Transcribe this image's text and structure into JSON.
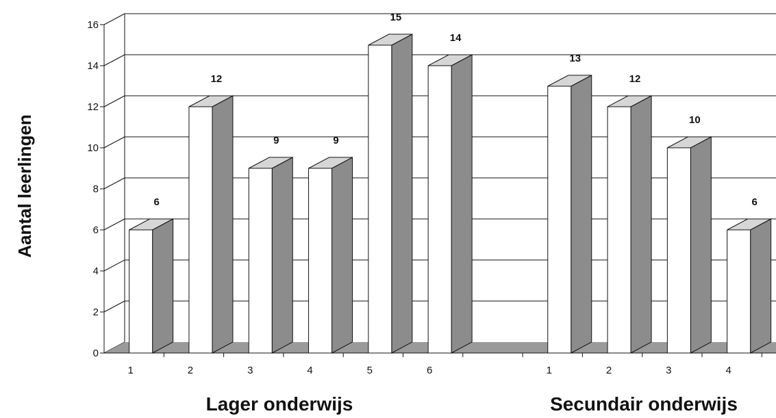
{
  "chart_data": {
    "type": "bar",
    "ylabel": "Aantal leerlingen",
    "ylim": [
      0,
      16
    ],
    "yticks": [
      "0",
      "2",
      "4",
      "6",
      "8",
      "10",
      "12",
      "14",
      "16"
    ],
    "grid": true,
    "groups": [
      {
        "name": "Lager onderwijs",
        "categories": [
          "1",
          "2",
          "3",
          "4",
          "5",
          "6"
        ],
        "values": [
          6,
          12,
          9,
          9,
          15,
          14
        ]
      },
      {
        "name": "Secundair onderwijs",
        "categories": [
          "1",
          "2",
          "3",
          "4"
        ],
        "values": [
          13,
          12,
          10,
          6
        ]
      }
    ],
    "colors": {
      "bar_front": "#ffffff",
      "bar_side": "#8c8c8c",
      "bar_top": "#d6d6d6",
      "floor": "#9a9a9a",
      "line": "#111111"
    }
  }
}
